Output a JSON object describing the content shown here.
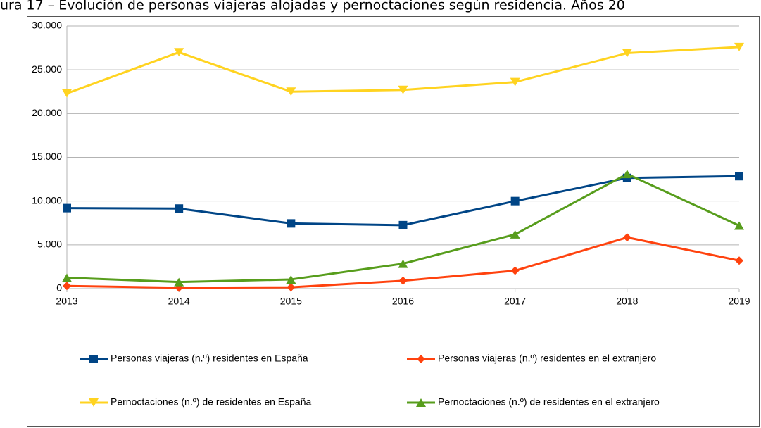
{
  "chart_data": {
    "type": "line",
    "title": "ura 17 – Evolución de personas viajeras alojadas y pernoctaciones según residencia. Años 20",
    "categories": [
      "2013",
      "2014",
      "2015",
      "2016",
      "2017",
      "2018",
      "2019"
    ],
    "series": [
      {
        "name": "Personas viajeras (n.º) residentes en España",
        "color": "#004586",
        "marker": "square",
        "values": [
          9200,
          9150,
          7450,
          7250,
          10000,
          12650,
          12850
        ]
      },
      {
        "name": "Personas viajeras (n.º) residentes en el extranjero",
        "color": "#ff420e",
        "marker": "diamond",
        "values": [
          300,
          100,
          150,
          900,
          2050,
          5850,
          3200
        ]
      },
      {
        "name": "Pernoctaciones (n.º) de residentes en España",
        "color": "#ffd320",
        "marker": "triangle-down",
        "values": [
          22300,
          27000,
          22500,
          22700,
          23600,
          26900,
          27600
        ]
      },
      {
        "name": "Pernoctaciones (n.º) de residentes en el extranjero",
        "color": "#579d1c",
        "marker": "triangle-up",
        "values": [
          1250,
          750,
          1050,
          2850,
          6200,
          13100,
          7200
        ]
      }
    ],
    "ylim": [
      0,
      30000
    ],
    "yticks": [
      0,
      {
        "value": 5000,
        "label": "5.000"
      },
      {
        "value": 10000,
        "label": "10.000"
      },
      {
        "value": 15000,
        "label": "15.000"
      },
      {
        "value": 20000,
        "label": "20.000"
      },
      {
        "value": 25000,
        "label": "25.000"
      },
      {
        "value": 30000,
        "label": "30.000"
      }
    ],
    "grid": true,
    "legend": "bottom"
  }
}
